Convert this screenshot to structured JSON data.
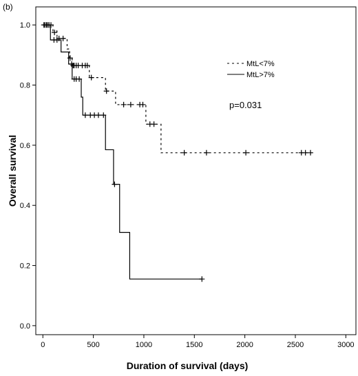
{
  "chart_data": {
    "type": "line",
    "panel_label": "(b)",
    "title": "",
    "xlabel": "Duration of survival (days)",
    "ylabel": "Overall survival",
    "xlim": [
      -70,
      3100
    ],
    "ylim": [
      -0.03,
      1.06
    ],
    "xticks": [
      0,
      500,
      1000,
      1500,
      2000,
      2500,
      3000
    ],
    "yticks": [
      0.0,
      0.2,
      0.4,
      0.6,
      0.8,
      1.0
    ],
    "ytick_labels": [
      "0.0",
      "0.2",
      "0.4",
      "0.6",
      "0.8",
      "1.0"
    ],
    "grid": false,
    "legend_position": "top-right",
    "annotation": "p=0.031",
    "series": [
      {
        "name": "MtL<7%",
        "style": "dashed",
        "steps": [
          [
            0,
            1.0
          ],
          [
            100,
            0.98
          ],
          [
            140,
            0.955
          ],
          [
            240,
            0.92
          ],
          [
            265,
            0.89
          ],
          [
            290,
            0.865
          ],
          [
            460,
            0.825
          ],
          [
            620,
            0.78
          ],
          [
            720,
            0.735
          ],
          [
            1020,
            0.67
          ],
          [
            1170,
            0.575
          ],
          [
            2660,
            0.575
          ]
        ],
        "censored": [
          [
            20,
            1.0
          ],
          [
            35,
            1.0
          ],
          [
            45,
            1.0
          ],
          [
            60,
            1.0
          ],
          [
            80,
            1.0
          ],
          [
            115,
            0.975
          ],
          [
            160,
            0.955
          ],
          [
            200,
            0.955
          ],
          [
            270,
            0.89
          ],
          [
            300,
            0.865
          ],
          [
            310,
            0.865
          ],
          [
            330,
            0.865
          ],
          [
            350,
            0.865
          ],
          [
            390,
            0.865
          ],
          [
            420,
            0.865
          ],
          [
            440,
            0.865
          ],
          [
            480,
            0.825
          ],
          [
            630,
            0.78
          ],
          [
            800,
            0.735
          ],
          [
            870,
            0.735
          ],
          [
            960,
            0.735
          ],
          [
            990,
            0.735
          ],
          [
            1060,
            0.67
          ],
          [
            1100,
            0.67
          ],
          [
            1400,
            0.575
          ],
          [
            1620,
            0.575
          ],
          [
            2010,
            0.575
          ],
          [
            2560,
            0.575
          ],
          [
            2600,
            0.575
          ],
          [
            2650,
            0.575
          ]
        ]
      },
      {
        "name": "MtL>7%",
        "style": "solid",
        "steps": [
          [
            0,
            1.0
          ],
          [
            75,
            0.95
          ],
          [
            180,
            0.91
          ],
          [
            255,
            0.87
          ],
          [
            290,
            0.82
          ],
          [
            380,
            0.76
          ],
          [
            395,
            0.7
          ],
          [
            620,
            0.585
          ],
          [
            700,
            0.47
          ],
          [
            760,
            0.31
          ],
          [
            860,
            0.155
          ],
          [
            1575,
            0.155
          ]
        ],
        "censored": [
          [
            10,
            1.0
          ],
          [
            60,
            1.0
          ],
          [
            110,
            0.95
          ],
          [
            140,
            0.95
          ],
          [
            285,
            0.87
          ],
          [
            310,
            0.82
          ],
          [
            330,
            0.82
          ],
          [
            360,
            0.82
          ],
          [
            420,
            0.7
          ],
          [
            470,
            0.7
          ],
          [
            510,
            0.7
          ],
          [
            550,
            0.7
          ],
          [
            600,
            0.7
          ],
          [
            710,
            0.47
          ],
          [
            1575,
            0.155
          ]
        ]
      }
    ]
  }
}
